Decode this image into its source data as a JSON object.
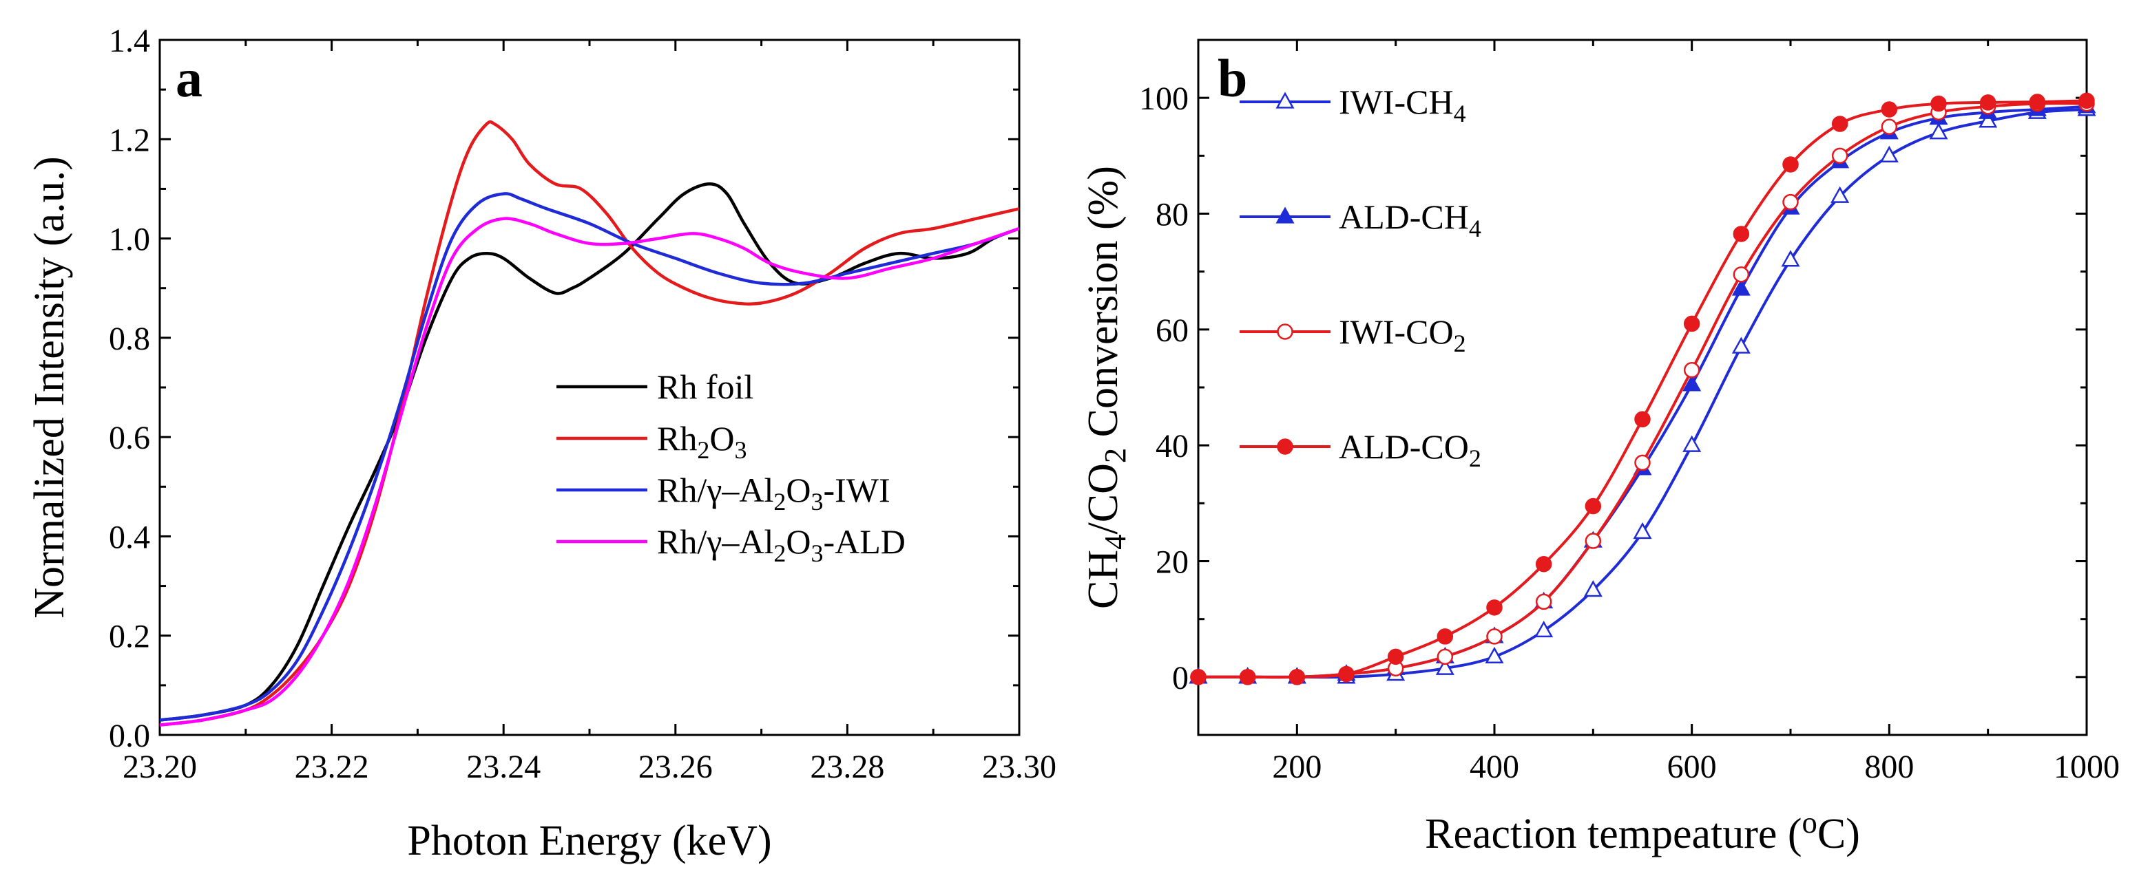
{
  "chart_data": [
    {
      "panel": "a",
      "type": "line",
      "xlabel": "Photon Energy (keV)",
      "ylabel": "Normalized Intensity (a.u.)",
      "xlim": [
        23.2,
        23.3
      ],
      "ylim": [
        0.0,
        1.4
      ],
      "xticks": [
        "23.20",
        "23.22",
        "23.24",
        "23.26",
        "23.28",
        "23.30"
      ],
      "yticks": [
        "0.0",
        "0.2",
        "0.4",
        "0.6",
        "0.8",
        "1.0",
        "1.2",
        "1.4"
      ],
      "legend_position": "center-right",
      "series": [
        {
          "name": "Rh foil",
          "name_parts": [
            [
              "Rh foil",
              "n"
            ]
          ],
          "color": "#000000",
          "x": [
            23.2,
            23.205,
            23.21,
            23.213,
            23.216,
            23.219,
            23.222,
            23.225,
            23.228,
            23.231,
            23.234,
            23.236,
            23.238,
            23.24,
            23.243,
            23.246,
            23.248,
            23.25,
            23.254,
            23.258,
            23.261,
            23.264,
            23.266,
            23.268,
            23.271,
            23.274,
            23.278,
            23.282,
            23.286,
            23.29,
            23.294,
            23.297,
            23.3
          ],
          "y": [
            0.03,
            0.04,
            0.06,
            0.1,
            0.18,
            0.3,
            0.42,
            0.53,
            0.65,
            0.8,
            0.92,
            0.96,
            0.97,
            0.96,
            0.92,
            0.89,
            0.9,
            0.92,
            0.97,
            1.04,
            1.09,
            1.11,
            1.09,
            1.03,
            0.95,
            0.91,
            0.92,
            0.95,
            0.97,
            0.96,
            0.97,
            1.0,
            1.02
          ]
        },
        {
          "name": "Rh2O3",
          "name_parts": [
            [
              "Rh",
              "n"
            ],
            [
              "2",
              "sub"
            ],
            [
              "O",
              "n"
            ],
            [
              "3",
              "sub"
            ]
          ],
          "color": "#e41a1c",
          "x": [
            23.2,
            23.205,
            23.21,
            23.213,
            23.216,
            23.219,
            23.222,
            23.225,
            23.228,
            23.231,
            23.234,
            23.236,
            23.238,
            23.239,
            23.241,
            23.243,
            23.246,
            23.249,
            23.252,
            23.255,
            23.258,
            23.261,
            23.264,
            23.267,
            23.27,
            23.274,
            23.278,
            23.282,
            23.286,
            23.29,
            23.295,
            23.3
          ],
          "y": [
            0.02,
            0.03,
            0.05,
            0.08,
            0.13,
            0.2,
            0.3,
            0.45,
            0.65,
            0.88,
            1.08,
            1.18,
            1.23,
            1.23,
            1.2,
            1.15,
            1.11,
            1.1,
            1.05,
            0.98,
            0.93,
            0.9,
            0.88,
            0.87,
            0.87,
            0.89,
            0.93,
            0.98,
            1.01,
            1.02,
            1.04,
            1.06
          ]
        },
        {
          "name": "Rh/γ–Al2O3-IWI",
          "name_parts": [
            [
              "Rh/γ–Al",
              "n"
            ],
            [
              "2",
              "sub"
            ],
            [
              "O",
              "n"
            ],
            [
              "3",
              "sub"
            ],
            [
              "-IWI",
              "n"
            ]
          ],
          "color": "#1f2bd6",
          "x": [
            23.2,
            23.205,
            23.21,
            23.213,
            23.216,
            23.219,
            23.222,
            23.225,
            23.228,
            23.231,
            23.234,
            23.237,
            23.24,
            23.242,
            23.245,
            23.25,
            23.255,
            23.26,
            23.265,
            23.27,
            23.275,
            23.28,
            23.285,
            23.29,
            23.295,
            23.3
          ],
          "y": [
            0.03,
            0.04,
            0.06,
            0.09,
            0.15,
            0.25,
            0.37,
            0.51,
            0.67,
            0.85,
            1.0,
            1.07,
            1.09,
            1.08,
            1.06,
            1.03,
            0.99,
            0.96,
            0.93,
            0.91,
            0.91,
            0.93,
            0.95,
            0.97,
            0.99,
            1.02
          ]
        },
        {
          "name": "Rh/γ–Al2O3-ALD",
          "name_parts": [
            [
              "Rh/γ–Al",
              "n"
            ],
            [
              "2",
              "sub"
            ],
            [
              "O",
              "n"
            ],
            [
              "3",
              "sub"
            ],
            [
              "-ALD",
              "n"
            ]
          ],
          "color": "#ff00ff",
          "x": [
            23.2,
            23.205,
            23.21,
            23.213,
            23.216,
            23.219,
            23.222,
            23.225,
            23.228,
            23.231,
            23.234,
            23.237,
            23.24,
            23.243,
            23.246,
            23.25,
            23.254,
            23.258,
            23.262,
            23.265,
            23.268,
            23.271,
            23.275,
            23.28,
            23.285,
            23.29,
            23.295,
            23.3
          ],
          "y": [
            0.02,
            0.03,
            0.05,
            0.07,
            0.12,
            0.2,
            0.31,
            0.46,
            0.64,
            0.82,
            0.96,
            1.02,
            1.04,
            1.03,
            1.01,
            0.99,
            0.99,
            1.0,
            1.01,
            1.0,
            0.98,
            0.95,
            0.93,
            0.92,
            0.94,
            0.96,
            0.99,
            1.02
          ]
        }
      ]
    },
    {
      "panel": "b",
      "type": "line",
      "xlabel_parts": [
        [
          "Reaction tempeature (",
          "n"
        ],
        [
          "o",
          "sup"
        ],
        [
          "C)",
          "n"
        ]
      ],
      "ylabel_parts": [
        [
          "CH",
          "n"
        ],
        [
          "4",
          "sub"
        ],
        [
          "/CO",
          "n"
        ],
        [
          "2",
          "sub"
        ],
        [
          " Conversion (%)",
          "n"
        ]
      ],
      "xlim": [
        100,
        1000
      ],
      "ylim": [
        -10,
        110
      ],
      "xticks": [
        200,
        400,
        600,
        800,
        1000
      ],
      "yticks": [
        0,
        20,
        40,
        60,
        80,
        100
      ],
      "legend_position": "top-left",
      "series": [
        {
          "name": "IWI-CH4",
          "name_parts": [
            [
              "IWI-CH",
              "n"
            ],
            [
              "4",
              "sub"
            ]
          ],
          "color": "#1f2bd6",
          "marker": "triangle",
          "filled": false,
          "x": [
            100,
            150,
            200,
            250,
            300,
            350,
            400,
            450,
            500,
            550,
            600,
            650,
            700,
            750,
            800,
            850,
            900,
            950,
            1000
          ],
          "y": [
            0,
            0,
            0,
            0,
            0.5,
            1.5,
            3.5,
            8,
            15,
            25,
            40,
            57,
            72,
            83,
            90,
            94,
            96,
            97.5,
            98
          ]
        },
        {
          "name": "ALD-CH4",
          "name_parts": [
            [
              "ALD-CH",
              "n"
            ],
            [
              "4",
              "sub"
            ]
          ],
          "color": "#1f2bd6",
          "marker": "triangle",
          "filled": true,
          "x": [
            100,
            150,
            200,
            250,
            300,
            350,
            400,
            450,
            500,
            550,
            600,
            650,
            700,
            750,
            800,
            850,
            900,
            950,
            1000
          ],
          "y": [
            0,
            0,
            0,
            0.5,
            1.5,
            3.5,
            7,
            13,
            23.5,
            36,
            50.5,
            67,
            81,
            89,
            94,
            96.5,
            97.5,
            98,
            98.5
          ]
        },
        {
          "name": "IWI-CO2",
          "name_parts": [
            [
              "IWI-CO",
              "n"
            ],
            [
              "2",
              "sub"
            ]
          ],
          "color": "#e41a1c",
          "marker": "circle",
          "filled": false,
          "x": [
            100,
            150,
            200,
            250,
            300,
            350,
            400,
            450,
            500,
            550,
            600,
            650,
            700,
            750,
            800,
            850,
            900,
            950,
            1000
          ],
          "y": [
            0,
            0,
            0,
            0.5,
            1.5,
            3.5,
            7,
            13,
            23.5,
            37,
            53,
            69.5,
            82,
            90,
            95,
            97.5,
            98.5,
            99,
            99
          ]
        },
        {
          "name": "ALD-CO2",
          "name_parts": [
            [
              "ALD-CO",
              "n"
            ],
            [
              "2",
              "sub"
            ]
          ],
          "color": "#e41a1c",
          "marker": "circle",
          "filled": true,
          "x": [
            100,
            150,
            200,
            250,
            300,
            350,
            400,
            450,
            500,
            550,
            600,
            650,
            700,
            750,
            800,
            850,
            900,
            950,
            1000
          ],
          "y": [
            0,
            0,
            0,
            0.5,
            3.5,
            7,
            12,
            19.5,
            29.5,
            44.5,
            61,
            76.5,
            88.5,
            95.5,
            98,
            99,
            99.2,
            99.3,
            99.5
          ]
        }
      ]
    }
  ]
}
